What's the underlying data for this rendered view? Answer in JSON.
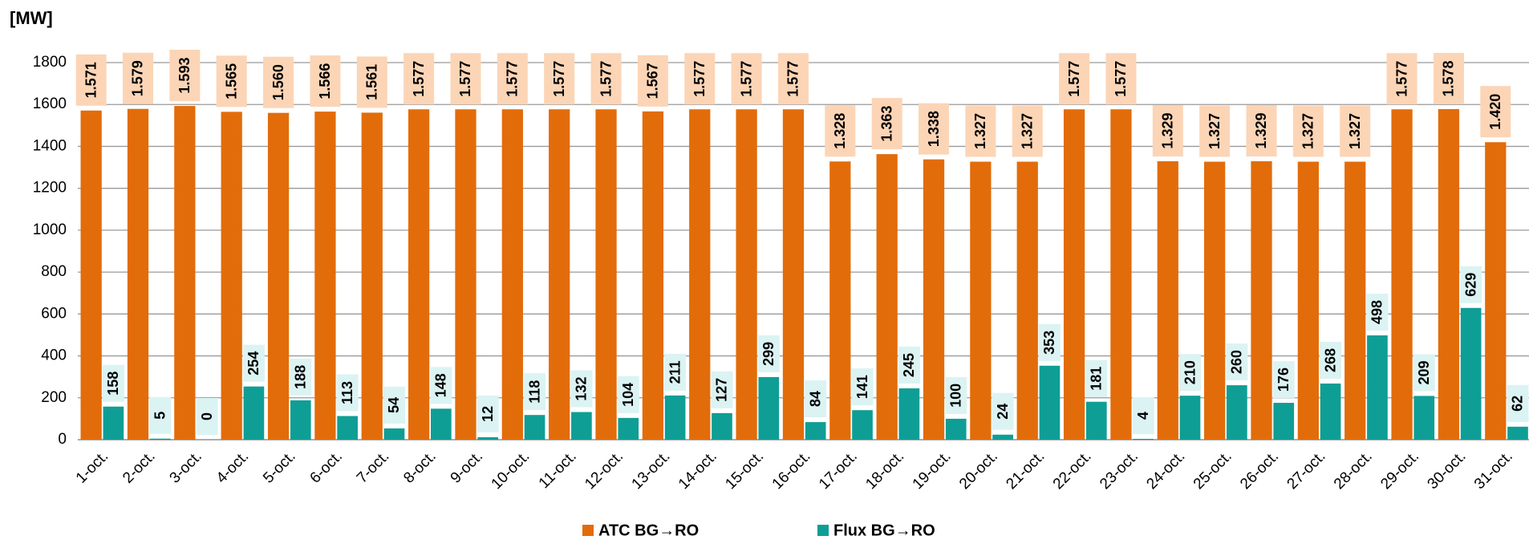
{
  "chart_data": {
    "type": "bar",
    "y_label": "[MW]",
    "categories": [
      "1-oct.",
      "2-oct.",
      "3-oct.",
      "4-oct.",
      "5-oct.",
      "6-oct.",
      "7-oct.",
      "8-oct.",
      "9-oct.",
      "10-oct.",
      "11-oct.",
      "12-oct.",
      "13-oct.",
      "14-oct.",
      "15-oct.",
      "16-oct.",
      "17-oct.",
      "18-oct.",
      "19-oct.",
      "20-oct.",
      "21-oct.",
      "22-oct.",
      "23-oct.",
      "24-oct.",
      "25-oct.",
      "26-oct.",
      "27-oct.",
      "28-oct.",
      "29-oct.",
      "30-oct.",
      "31-oct."
    ],
    "series": [
      {
        "name": "ATC BG→RO",
        "color": "#e36c0a",
        "label_box": "#fbd5b5",
        "values": [
          1571,
          1579,
          1593,
          1565,
          1560,
          1566,
          1561,
          1577,
          1577,
          1577,
          1577,
          1577,
          1567,
          1577,
          1577,
          1577,
          1328,
          1363,
          1338,
          1327,
          1327,
          1577,
          1577,
          1329,
          1327,
          1329,
          1327,
          1327,
          1577,
          1578,
          1420
        ],
        "value_labels": [
          "1.571",
          "1.579",
          "1.593",
          "1.565",
          "1.560",
          "1.566",
          "1.561",
          "1.577",
          "1.577",
          "1.577",
          "1.577",
          "1.577",
          "1.567",
          "1.577",
          "1.577",
          "1.577",
          "1.328",
          "1.363",
          "1.338",
          "1.327",
          "1.327",
          "1.577",
          "1.577",
          "1.329",
          "1.327",
          "1.329",
          "1.327",
          "1.327",
          "1.577",
          "1.578",
          "1.420"
        ]
      },
      {
        "name": "Flux BG→RO",
        "color": "#0e9e96",
        "label_box": "#dcf3f3",
        "values": [
          158,
          5,
          0,
          254,
          188,
          113,
          54,
          148,
          12,
          118,
          132,
          104,
          211,
          127,
          299,
          84,
          141,
          245,
          100,
          24,
          353,
          181,
          4,
          210,
          260,
          176,
          268,
          498,
          209,
          629,
          62
        ]
      }
    ],
    "ylim": [
      0,
      1800
    ],
    "yticks": [
      0,
      200,
      400,
      600,
      800,
      1000,
      1200,
      1400,
      1600,
      1800
    ],
    "grid": true
  }
}
